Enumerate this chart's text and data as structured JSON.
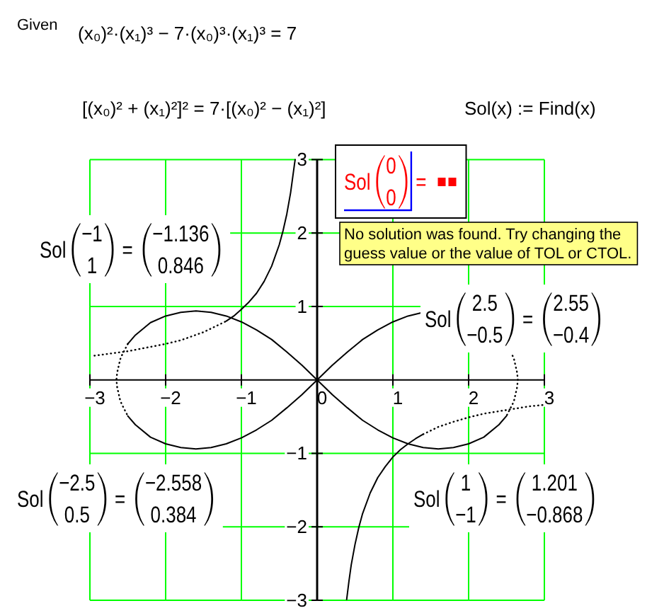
{
  "chart_data": {
    "type": "line",
    "xlim": [
      -3,
      3
    ],
    "ylim": [
      -3,
      3
    ],
    "xticks": [
      -3,
      -2,
      -1,
      0,
      1,
      2,
      3
    ],
    "yticks": [
      -3,
      -2,
      -1,
      1,
      2,
      3
    ],
    "grid": true,
    "series": [
      {
        "color": "#000000",
        "line_style": "solid",
        "x": [
          -2.5,
          -2.4,
          -2.2,
          -2,
          -1.8,
          -1.6,
          -1.4,
          -1.2,
          -1,
          -0.8,
          -0.6,
          -0.4,
          -0.2,
          0,
          0.2,
          0.4,
          0.6,
          0.8,
          1,
          1.2,
          1.4,
          1.6,
          1.8,
          2,
          2.2,
          2.4,
          2.5
        ],
        "values": [
          0.49,
          0.61,
          0.78,
          0.87,
          0.92,
          0.94,
          0.92,
          0.87,
          0.79,
          0.68,
          0.55,
          0.38,
          0.2,
          0,
          -0.2,
          -0.38,
          -0.55,
          -0.68,
          -0.79,
          -0.87,
          -0.92,
          -0.94,
          -0.92,
          -0.87,
          -0.78,
          -0.61,
          -0.49
        ]
      },
      {
        "color": "#000000",
        "line_style": "solid",
        "x": [
          -2.5,
          -2.4,
          -2.2,
          -2,
          -1.8,
          -1.6,
          -1.4,
          -1.2,
          -1,
          -0.8,
          -0.6,
          -0.4,
          -0.2,
          0,
          0.2,
          0.4,
          0.6,
          0.8,
          1,
          1.2,
          1.4
        ],
        "values": [
          -0.49,
          -0.61,
          -0.78,
          -0.87,
          -0.92,
          -0.94,
          -0.92,
          -0.87,
          -0.79,
          -0.68,
          -0.55,
          -0.38,
          -0.2,
          0,
          0.2,
          0.38,
          0.55,
          0.68,
          0.79,
          0.87,
          0.92
        ]
      },
      {
        "color": "#000000",
        "line_style": "dotted",
        "x": [
          -2.5,
          -2.58,
          -2.6,
          -2.64,
          -2.65,
          -2.64,
          -2.6,
          -2.58,
          -2.5
        ],
        "values": [
          0.49,
          0.33,
          0.28,
          0.1,
          0,
          -0.1,
          -0.28,
          -0.33,
          -0.49
        ]
      },
      {
        "color": "#000000",
        "line_style": "dotted",
        "x": [
          2.58,
          2.6,
          2.64,
          2.65,
          2.64,
          2.6,
          2.58,
          2.5
        ],
        "values": [
          0.33,
          0.28,
          0.1,
          0,
          -0.1,
          -0.28,
          -0.33,
          -0.49
        ]
      },
      {
        "color": "#000000",
        "line_style": "dotted",
        "x": [
          -2.94,
          -2.5,
          -2.2,
          -2,
          -1.8,
          -1.5,
          -1.2
        ],
        "values": [
          0.33,
          0.39,
          0.45,
          0.49,
          0.54,
          0.65,
          0.8
        ]
      },
      {
        "color": "#000000",
        "line_style": "solid",
        "x": [
          -1.2,
          -1.1,
          -1,
          -0.9,
          -0.8,
          -0.7,
          -0.6,
          -0.5,
          -0.45,
          -0.4,
          -0.35,
          -0.3,
          -0.29
        ],
        "values": [
          0.8,
          0.87,
          0.96,
          1.06,
          1.18,
          1.34,
          1.55,
          1.84,
          2.03,
          2.26,
          2.55,
          2.93,
          3
        ]
      },
      {
        "color": "#000000",
        "line_style": "solid",
        "x": [
          0.39,
          0.42,
          0.45,
          0.5,
          0.55,
          0.6,
          0.7,
          0.8,
          0.9,
          1,
          1.1,
          1.2,
          1.3,
          1.4
        ],
        "values": [
          -2.99,
          -2.74,
          -2.52,
          -2.24,
          -2.01,
          -1.82,
          -1.54,
          -1.33,
          -1.18,
          -1.05,
          -0.95,
          -0.87,
          -0.8,
          -0.74
        ]
      },
      {
        "color": "#000000",
        "line_style": "dotted",
        "x": [
          1.4,
          1.6,
          1.8,
          2,
          2.2,
          2.5,
          2.8,
          3
        ],
        "values": [
          -0.74,
          -0.64,
          -0.57,
          -0.51,
          -0.46,
          -0.41,
          -0.36,
          -0.34
        ]
      }
    ],
    "annotations": [
      "Given",
      "(x₀)²·(x₁)³ − 7·(x₀)³·(x₁)³ = 7",
      "[(x₀)² + (x₁)²]² = 7·[(x₀)² − (x₁)²]",
      "Sol(x) := Find(x)",
      "Sol(−1 1)=(−1.136 0.846)",
      "Sol(0 0)=",
      "No solution was found. Try changing the guess value or the value of TOL or CTOL.",
      "Sol(2.5 −0.5)=(2.55 −0.4)",
      "Sol(−2.5 0.5)=(−2.558 0.384)",
      "Sol(1 −1)=(1.201 −0.868)"
    ]
  }
}
